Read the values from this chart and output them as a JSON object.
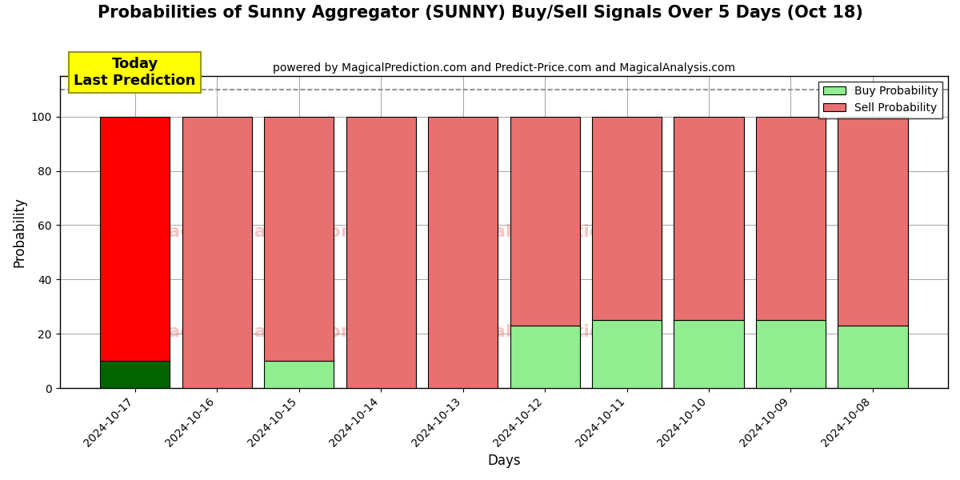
{
  "title": "Probabilities of Sunny Aggregator (SUNNY) Buy/Sell Signals Over 5 Days (Oct 18)",
  "subtitle": "powered by MagicalPrediction.com and Predict-Price.com and MagicalAnalysis.com",
  "xlabel": "Days",
  "ylabel": "Probability",
  "dates": [
    "2024-10-17",
    "2024-10-16",
    "2024-10-15",
    "2024-10-14",
    "2024-10-13",
    "2024-10-12",
    "2024-10-11",
    "2024-10-10",
    "2024-10-09",
    "2024-10-08"
  ],
  "buy_values": [
    10,
    0,
    10,
    0,
    0,
    23,
    25,
    25,
    25,
    23
  ],
  "sell_values": [
    90,
    100,
    90,
    100,
    100,
    77,
    75,
    75,
    75,
    77
  ],
  "buy_colors": [
    "#006400",
    "#90EE90",
    "#90EE90",
    "#90EE90",
    "#90EE90",
    "#90EE90",
    "#90EE90",
    "#90EE90",
    "#90EE90",
    "#90EE90"
  ],
  "sell_colors": [
    "#FF0000",
    "#E87070",
    "#E87070",
    "#E87070",
    "#E87070",
    "#E87070",
    "#E87070",
    "#E87070",
    "#E87070",
    "#E87070"
  ],
  "today_box_color": "#FFFF00",
  "today_label": "Today\nLast Prediction",
  "legend_buy_color": "#90EE90",
  "legend_sell_color": "#E87070",
  "ylim": [
    0,
    115
  ],
  "dashed_line_y": 110,
  "background_color": "#ffffff",
  "bar_edge_color": "#000000",
  "bar_width": 0.85
}
